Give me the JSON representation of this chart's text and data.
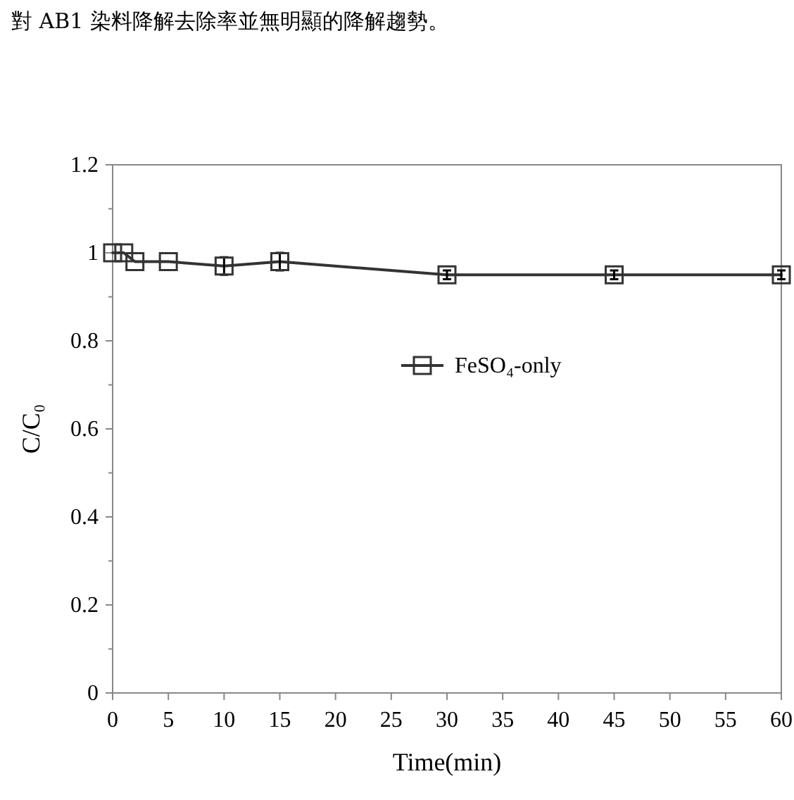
{
  "chart_data": {
    "type": "line",
    "xlabel": "Time(min)",
    "ylabel": "C/C₀",
    "annotations": [
      "對 AB1 染料降解去除率並無明顯的降解趨勢。"
    ],
    "x": [
      0,
      1,
      2,
      5,
      10,
      15,
      30,
      45,
      60
    ],
    "series": [
      {
        "name": "FeSO₄-only",
        "color": "#333333",
        "values": [
          1.0,
          1.0,
          0.98,
          0.98,
          0.97,
          0.98,
          0.95,
          0.95,
          0.95
        ],
        "errors": [
          null,
          null,
          null,
          null,
          0.02,
          0.02,
          0.01,
          0.01,
          0.01
        ]
      }
    ],
    "xlim": [
      0,
      60
    ],
    "xticks": [
      0,
      5,
      10,
      15,
      20,
      25,
      30,
      35,
      40,
      45,
      50,
      55,
      60
    ],
    "ylim": [
      0,
      1.2
    ],
    "yticks": [
      0,
      0.2,
      0.4,
      0.6,
      0.8,
      1,
      1.2
    ],
    "marker": "square",
    "line_style": "solid",
    "legend": "right"
  }
}
